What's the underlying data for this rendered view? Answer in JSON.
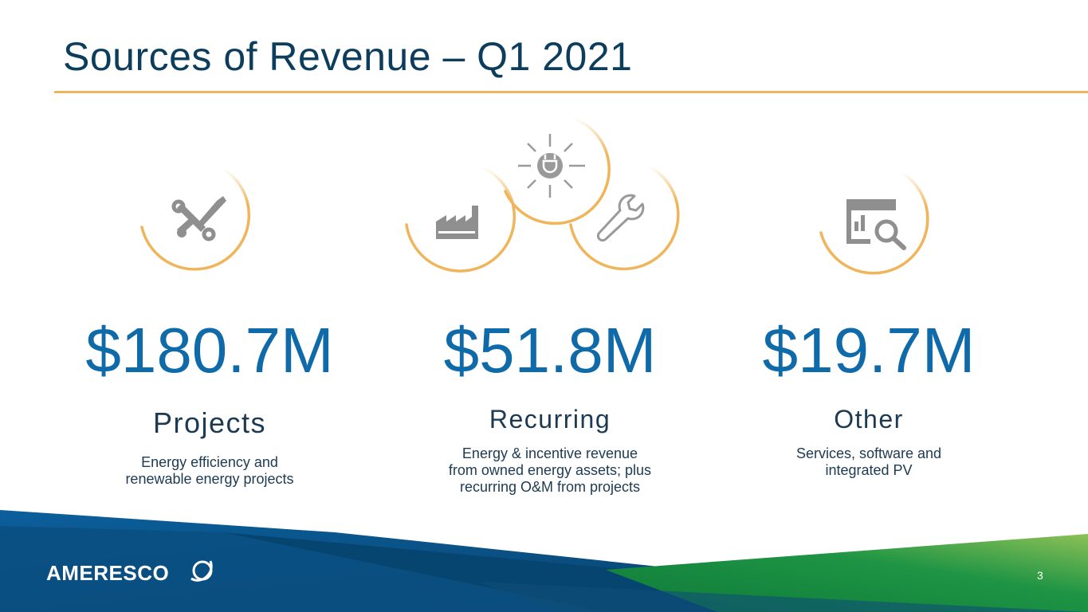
{
  "slide": {
    "title": "Sources of Revenue – Q1 2021",
    "page_number": "3"
  },
  "logo": {
    "text": "AMERESCO"
  },
  "colors": {
    "title": "#0d3d5c",
    "accent_orange": "#f0b55a",
    "value_blue": "#0e6aa8",
    "icon_gray": "#9a9a9a",
    "footer_blue": "#0a5a94",
    "footer_green": "#1a8a3c"
  },
  "metrics": [
    {
      "value": "$180.7M",
      "label": "Projects",
      "description": [
        "Energy efficiency and",
        "renewable energy projects"
      ],
      "icon": "tools-icon"
    },
    {
      "value": "$51.8M",
      "label": "Recurring",
      "description": [
        "Energy & incentive revenue",
        "from owned energy assets; plus",
        "recurring O&M from projects"
      ],
      "icon": "factory-sun-wrench-icons"
    },
    {
      "value": "$19.7M",
      "label": "Other",
      "description": [
        "Services, software and",
        "integrated PV"
      ],
      "icon": "analytics-search-icon"
    }
  ]
}
